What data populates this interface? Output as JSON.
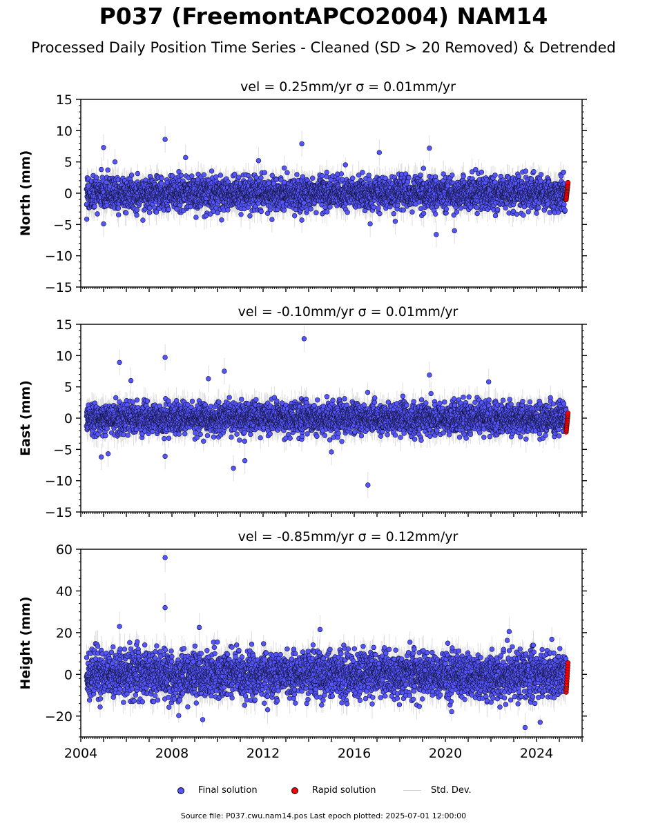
{
  "title": "P037 (FreemontAPCO2004) NAM14",
  "subtitle": "Processed Daily Position Time Series - Cleaned (SD > 20 Removed) & Detrended",
  "chart_data": [
    {
      "type": "scatter",
      "title": "vel = 0.25mm/yr   σ = 0.01mm/yr",
      "ylabel": "North (mm)",
      "ylim": [
        -15,
        15
      ],
      "yticks": [
        -15,
        -10,
        -5,
        0,
        5,
        10,
        15
      ],
      "xlim": [
        2004.0,
        2026.0
      ],
      "xticks": [
        2004,
        2008,
        2012,
        2016,
        2020,
        2024
      ],
      "xtick_labels_shown": false,
      "grid": false,
      "series": [
        {
          "name": "Final solution",
          "color": "#5555ff",
          "x_range": [
            2004.25,
            2025.3
          ],
          "typical_scatter_sd": 1.3,
          "typical_error_bar": 1.5
        },
        {
          "name": "Rapid solution",
          "color": "#ff0000",
          "x_range": [
            2025.3,
            2025.5
          ],
          "y_range": [
            -1.0,
            1.7
          ]
        }
      ],
      "outliers": [
        {
          "x": 2005.0,
          "y": 7.3
        },
        {
          "x": 2005.0,
          "y": -4.9
        },
        {
          "x": 2005.5,
          "y": 5.0
        },
        {
          "x": 2007.7,
          "y": 8.6
        },
        {
          "x": 2008.6,
          "y": 5.7
        },
        {
          "x": 2009.5,
          "y": -3.6
        },
        {
          "x": 2011.8,
          "y": 5.2
        },
        {
          "x": 2013.7,
          "y": 7.9
        },
        {
          "x": 2013.7,
          "y": -4.3
        },
        {
          "x": 2016.7,
          "y": -4.9
        },
        {
          "x": 2017.1,
          "y": 6.5
        },
        {
          "x": 2017.8,
          "y": -4.5
        },
        {
          "x": 2019.3,
          "y": 7.2
        },
        {
          "x": 2019.6,
          "y": -6.6
        },
        {
          "x": 2020.4,
          "y": -6.0
        },
        {
          "x": 2024.0,
          "y": -3.2
        }
      ]
    },
    {
      "type": "scatter",
      "title": "vel = -0.10mm/yr   σ = 0.01mm/yr",
      "ylabel": "East (mm)",
      "ylim": [
        -15,
        15
      ],
      "yticks": [
        -15,
        -10,
        -5,
        0,
        5,
        10,
        15
      ],
      "xlim": [
        2004.0,
        2026.0
      ],
      "xticks": [
        2004,
        2008,
        2012,
        2016,
        2020,
        2024
      ],
      "xtick_labels_shown": false,
      "grid": false,
      "series": [
        {
          "name": "Final solution",
          "color": "#5555ff",
          "x_range": [
            2004.25,
            2025.3
          ],
          "typical_scatter_sd": 1.2,
          "typical_error_bar": 1.5
        },
        {
          "name": "Rapid solution",
          "color": "#ff0000",
          "x_range": [
            2025.3,
            2025.5
          ],
          "y_range": [
            -2.2,
            0.8
          ]
        }
      ],
      "outliers": [
        {
          "x": 2004.9,
          "y": -6.2
        },
        {
          "x": 2005.2,
          "y": -5.7
        },
        {
          "x": 2005.7,
          "y": 8.9
        },
        {
          "x": 2006.2,
          "y": 6.0
        },
        {
          "x": 2007.7,
          "y": 9.7
        },
        {
          "x": 2007.7,
          "y": -6.1
        },
        {
          "x": 2009.6,
          "y": 6.3
        },
        {
          "x": 2010.3,
          "y": 7.5
        },
        {
          "x": 2010.7,
          "y": -8.0
        },
        {
          "x": 2011.2,
          "y": -6.8
        },
        {
          "x": 2013.8,
          "y": 12.7
        },
        {
          "x": 2015.0,
          "y": -5.4
        },
        {
          "x": 2016.6,
          "y": -10.7
        },
        {
          "x": 2019.3,
          "y": 6.9
        },
        {
          "x": 2021.9,
          "y": 5.8
        }
      ]
    },
    {
      "type": "scatter",
      "title": "vel = -0.85mm/yr   σ = 0.12mm/yr",
      "ylabel": "Height (mm)",
      "ylim": [
        -30,
        60
      ],
      "yticks": [
        -20,
        0,
        20,
        40,
        60
      ],
      "xlim": [
        2004.0,
        2026.0
      ],
      "xticks": [
        2004,
        2008,
        2012,
        2016,
        2020,
        2024
      ],
      "xtick_labels": [
        "2004",
        "2008",
        "2012",
        "2016",
        "2020",
        "2024"
      ],
      "grid": false,
      "series": [
        {
          "name": "Final solution",
          "color": "#5555ff",
          "x_range": [
            2004.25,
            2025.3
          ],
          "typical_scatter_sd": 5.5,
          "typical_error_bar": 5.0
        },
        {
          "name": "Rapid solution",
          "color": "#ff0000",
          "x_range": [
            2025.3,
            2025.5
          ],
          "y_range": [
            -8.5,
            5.5
          ]
        }
      ],
      "outliers": [
        {
          "x": 2005.7,
          "y": 23.0
        },
        {
          "x": 2007.7,
          "y": 56.0
        },
        {
          "x": 2007.7,
          "y": 32.0
        },
        {
          "x": 2009.2,
          "y": 22.5
        },
        {
          "x": 2012.2,
          "y": -17.0
        },
        {
          "x": 2014.5,
          "y": 21.5
        },
        {
          "x": 2022.8,
          "y": 20.5
        },
        {
          "x": 2023.5,
          "y": -25.5
        }
      ]
    }
  ],
  "legend": {
    "placement": "bottom-center",
    "items": [
      {
        "label": "Final solution",
        "color": "#5555ff",
        "marker": "dot"
      },
      {
        "label": "Rapid solution",
        "color": "#ff0000",
        "marker": "dot"
      },
      {
        "label": "Std. Dev.",
        "color": "#d0d0d0",
        "marker": "line"
      }
    ]
  },
  "footer": "Source file: P037.cwu.nam14.pos  Last epoch plotted: 2025-07-01 12:00:00"
}
